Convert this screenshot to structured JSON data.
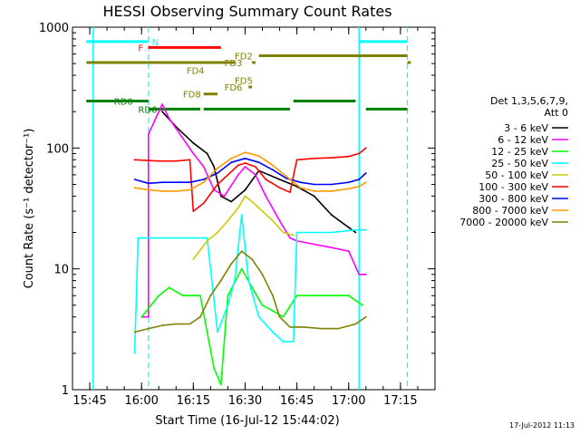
{
  "chart_data": {
    "type": "line",
    "title": "HESSI Observing Summary Count Rates",
    "xlabel": "Start Time (16-Jul-12 15:44:02)",
    "ylabel": "Count Rate (s⁻¹ detector⁻¹)",
    "x_unit": "time (HH:MM, 16-Jul-2012)",
    "xlim": [
      "15:40",
      "17:25"
    ],
    "ylim": [
      1,
      1000
    ],
    "yscale": "log",
    "x_ticks": [
      "15:45",
      "16:00",
      "16:15",
      "16:30",
      "16:45",
      "17:00",
      "17:15"
    ],
    "y_ticks": [
      "1",
      "10",
      "100",
      "1000"
    ],
    "grid": false,
    "legend_position": "right",
    "legend_header": [
      "Det 1,3,5,6,7,9,",
      "Att 0"
    ],
    "attenuator_lines": [
      "16:02",
      "17:17"
    ],
    "night_lines": [
      "15:46",
      "17:03"
    ],
    "series": [
      {
        "name": "3 - 6 keV",
        "color": "#000000",
        "points": [
          [
            "16:06",
            200
          ],
          [
            "16:10",
            150
          ],
          [
            "16:15",
            110
          ],
          [
            "16:19",
            90
          ],
          [
            "16:21",
            70
          ],
          [
            "16:23",
            40
          ],
          [
            "16:26",
            36
          ],
          [
            "16:30",
            45
          ],
          [
            "16:34",
            65
          ],
          [
            "16:40",
            55
          ],
          [
            "16:45",
            48
          ],
          [
            "16:50",
            40
          ],
          [
            "16:55",
            28
          ],
          [
            "17:00",
            22
          ],
          [
            "17:02",
            20
          ]
        ]
      },
      {
        "name": "6 - 12 keV",
        "color": "#ff00ff",
        "points": [
          [
            "16:00",
            4
          ],
          [
            "16:02",
            4
          ],
          [
            "16:02",
            130
          ],
          [
            "16:06",
            230
          ],
          [
            "16:08",
            175
          ],
          [
            "16:12",
            120
          ],
          [
            "16:15",
            90
          ],
          [
            "16:18",
            70
          ],
          [
            "16:21",
            45
          ],
          [
            "16:24",
            40
          ],
          [
            "16:28",
            60
          ],
          [
            "16:30",
            70
          ],
          [
            "16:33",
            60
          ],
          [
            "16:36",
            40
          ],
          [
            "16:40",
            25
          ],
          [
            "16:43",
            18
          ],
          [
            "16:45",
            17
          ],
          [
            "16:50",
            16
          ],
          [
            "16:55",
            15
          ],
          [
            "17:00",
            14
          ],
          [
            "17:03",
            9
          ],
          [
            "17:05",
            9
          ]
        ]
      },
      {
        "name": "12 - 25 keV",
        "color": "#00ff00",
        "points": [
          [
            "16:00",
            4
          ],
          [
            "16:05",
            6
          ],
          [
            "16:08",
            7
          ],
          [
            "16:12",
            6
          ],
          [
            "16:15",
            6
          ],
          [
            "16:17",
            6
          ],
          [
            "16:21",
            1.5
          ],
          [
            "16:23",
            1.1
          ],
          [
            "16:25",
            6
          ],
          [
            "16:29",
            10
          ],
          [
            "16:32",
            7
          ],
          [
            "16:35",
            5
          ],
          [
            "16:38",
            4.5
          ],
          [
            "16:41",
            4
          ],
          [
            "16:45",
            6
          ],
          [
            "16:50",
            6
          ],
          [
            "16:55",
            6
          ],
          [
            "17:00",
            6
          ],
          [
            "17:04",
            5
          ]
        ]
      },
      {
        "name": "25 - 50 keV",
        "color": "#00ffff",
        "points": [
          [
            "15:58",
            2
          ],
          [
            "15:59",
            18
          ],
          [
            "16:05",
            18
          ],
          [
            "16:10",
            18
          ],
          [
            "16:16",
            18
          ],
          [
            "16:19",
            18
          ],
          [
            "16:22",
            3
          ],
          [
            "16:25",
            5
          ],
          [
            "16:27",
            8
          ],
          [
            "16:29",
            28
          ],
          [
            "16:31",
            8
          ],
          [
            "16:34",
            4
          ],
          [
            "16:38",
            3
          ],
          [
            "16:41",
            2.5
          ],
          [
            "16:44",
            2.5
          ],
          [
            "16:45",
            20
          ],
          [
            "16:55",
            20
          ],
          [
            "17:02",
            21
          ],
          [
            "17:05",
            21
          ]
        ]
      },
      {
        "name": "50 - 100 keV",
        "color": "#cccc00",
        "points": [
          [
            "16:15",
            12
          ],
          [
            "16:19",
            17
          ],
          [
            "16:22",
            20
          ],
          [
            "16:25",
            25
          ],
          [
            "16:28",
            32
          ],
          [
            "16:30",
            40
          ],
          [
            "16:32",
            36
          ],
          [
            "16:35",
            30
          ],
          [
            "16:38",
            25
          ],
          [
            "16:41",
            20
          ],
          [
            "16:44",
            19
          ]
        ]
      },
      {
        "name": "100 - 300 keV",
        "color": "#ff0000",
        "points": [
          [
            "15:58",
            80
          ],
          [
            "16:05",
            78
          ],
          [
            "16:10",
            78
          ],
          [
            "16:14",
            80
          ],
          [
            "16:15",
            30
          ],
          [
            "16:18",
            35
          ],
          [
            "16:22",
            50
          ],
          [
            "16:25",
            60
          ],
          [
            "16:28",
            72
          ],
          [
            "16:30",
            75
          ],
          [
            "16:33",
            70
          ],
          [
            "16:36",
            55
          ],
          [
            "16:40",
            47
          ],
          [
            "16:43",
            43
          ],
          [
            "16:45",
            80
          ],
          [
            "16:50",
            82
          ],
          [
            "16:55",
            83
          ],
          [
            "17:00",
            85
          ],
          [
            "17:03",
            90
          ],
          [
            "17:05",
            100
          ]
        ]
      },
      {
        "name": "300 - 800 keV",
        "color": "#0000ff",
        "points": [
          [
            "15:58",
            55
          ],
          [
            "16:02",
            51
          ],
          [
            "16:06",
            52
          ],
          [
            "16:10",
            52
          ],
          [
            "16:14",
            52
          ],
          [
            "16:18",
            55
          ],
          [
            "16:22",
            62
          ],
          [
            "16:26",
            76
          ],
          [
            "16:30",
            82
          ],
          [
            "16:34",
            76
          ],
          [
            "16:38",
            66
          ],
          [
            "16:42",
            56
          ],
          [
            "16:46",
            52
          ],
          [
            "16:50",
            50
          ],
          [
            "16:55",
            50
          ],
          [
            "17:00",
            52
          ],
          [
            "17:03",
            55
          ],
          [
            "17:05",
            62
          ]
        ]
      },
      {
        "name": "800 - 7000 keV",
        "color": "#ff9900",
        "points": [
          [
            "15:58",
            47
          ],
          [
            "16:02",
            45
          ],
          [
            "16:06",
            44
          ],
          [
            "16:10",
            44
          ],
          [
            "16:14",
            45
          ],
          [
            "16:18",
            52
          ],
          [
            "16:22",
            68
          ],
          [
            "16:26",
            82
          ],
          [
            "16:30",
            92
          ],
          [
            "16:34",
            86
          ],
          [
            "16:38",
            72
          ],
          [
            "16:42",
            58
          ],
          [
            "16:46",
            47
          ],
          [
            "16:50",
            44
          ],
          [
            "16:55",
            44
          ],
          [
            "17:00",
            46
          ],
          [
            "17:03",
            48
          ],
          [
            "17:05",
            52
          ]
        ]
      },
      {
        "name": "7000 - 20000 keV",
        "color": "#808000",
        "points": [
          [
            "15:58",
            3
          ],
          [
            "16:02",
            3.2
          ],
          [
            "16:06",
            3.4
          ],
          [
            "16:10",
            3.5
          ],
          [
            "16:14",
            3.5
          ],
          [
            "16:17",
            4
          ],
          [
            "16:20",
            6
          ],
          [
            "16:23",
            8
          ],
          [
            "16:26",
            11
          ],
          [
            "16:29",
            14
          ],
          [
            "16:32",
            12
          ],
          [
            "16:35",
            9
          ],
          [
            "16:38",
            6
          ],
          [
            "16:40",
            4
          ],
          [
            "16:43",
            3.3
          ],
          [
            "16:47",
            3.3
          ],
          [
            "16:52",
            3.2
          ],
          [
            "16:57",
            3.2
          ],
          [
            "17:02",
            3.5
          ],
          [
            "17:05",
            4
          ]
        ]
      }
    ],
    "flags": [
      {
        "label": "N",
        "color": "#00ffff",
        "label_at": "16:03",
        "segments": [
          [
            "15:44",
            "16:02"
          ],
          [
            "17:03",
            "17:17"
          ]
        ],
        "level": 760
      },
      {
        "label": "F",
        "color": "#ff0000",
        "label_at": "15:59",
        "segments": [
          [
            "16:02",
            "16:23"
          ]
        ],
        "level": 680
      },
      {
        "label": "FD2",
        "color": "#808000",
        "label_at": "16:27",
        "segments": [
          [
            "16:34",
            "17:17"
          ]
        ],
        "level": 580
      },
      {
        "label": "FD3",
        "color": "#808000",
        "label_at": "16:24",
        "segments": [
          [
            "15:44",
            "16:27"
          ],
          [
            "16:32",
            "16:33"
          ],
          [
            "17:17",
            "17:18"
          ]
        ],
        "level": 510
      },
      {
        "label": "FD4",
        "color": "#808000",
        "label_at": "16:13",
        "segments": [],
        "level": 440
      },
      {
        "label": "FD5",
        "color": "#808000",
        "label_at": "16:27",
        "segments": [],
        "level": 365
      },
      {
        "label": "FD6",
        "color": "#808000",
        "label_at": "16:24",
        "segments": [
          [
            "16:31",
            "16:32"
          ]
        ],
        "level": 320
      },
      {
        "label": "FD8",
        "color": "#808000",
        "label_at": "16:12",
        "segments": [
          [
            "16:18",
            "16:22"
          ]
        ],
        "level": 280
      },
      {
        "label": "RD0",
        "color": "#008000",
        "label_at": "15:52",
        "segments": [
          [
            "15:44",
            "16:02"
          ],
          [
            "16:44",
            "17:02"
          ]
        ],
        "level": 245
      },
      {
        "label": "RD6",
        "color": "#008000",
        "label_at": "15:59",
        "segments": [
          [
            "16:02",
            "16:17"
          ],
          [
            "16:18",
            "16:43"
          ],
          [
            "17:05",
            "17:17"
          ]
        ],
        "level": 210
      }
    ]
  },
  "footer": {
    "timestamp": "17-Jul-2012 11:13"
  }
}
